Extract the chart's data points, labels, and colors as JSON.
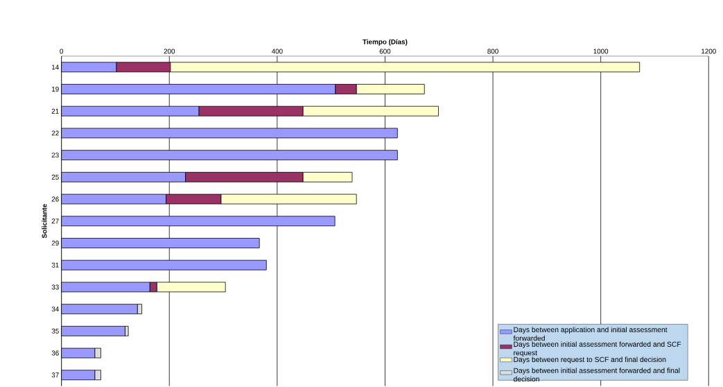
{
  "chart_data": {
    "type": "bar",
    "orientation": "horizontal",
    "stacked": true,
    "xlabel": "Tiempo (Días)",
    "ylabel": "Solicitante",
    "categories": [
      "14",
      "19",
      "21",
      "22",
      "23",
      "25",
      "26",
      "27",
      "29",
      "31",
      "33",
      "34",
      "35",
      "36",
      "37"
    ],
    "series": [
      {
        "name": "Days between application and initial assessment forwarded",
        "color": "#9999ff",
        "values": [
          102,
          508,
          255,
          623,
          623,
          230,
          194,
          507,
          367,
          380,
          164,
          141,
          118,
          62,
          62
        ]
      },
      {
        "name": "Days between initial assessment forwarded and SCF request",
        "color": "#993366",
        "values": [
          100,
          39,
          193,
          null,
          null,
          218,
          102,
          null,
          null,
          null,
          13,
          null,
          null,
          null,
          null
        ]
      },
      {
        "name": "Days between request to SCF and final decision",
        "color": "#ffffcc",
        "values": [
          870,
          126,
          251,
          null,
          null,
          91,
          251,
          null,
          null,
          null,
          127,
          null,
          null,
          null,
          null
        ]
      },
      {
        "name": "Days between initial assessment forwarded and final decision",
        "color": "#dddddd",
        "values": [
          null,
          null,
          null,
          null,
          null,
          null,
          null,
          null,
          null,
          null,
          null,
          8,
          6,
          11,
          11
        ]
      }
    ],
    "xlim": [
      0,
      1200
    ],
    "xticks": [
      0,
      200,
      400,
      600,
      800,
      1000,
      1200
    ],
    "grid": "x",
    "legend": "bottom right"
  }
}
